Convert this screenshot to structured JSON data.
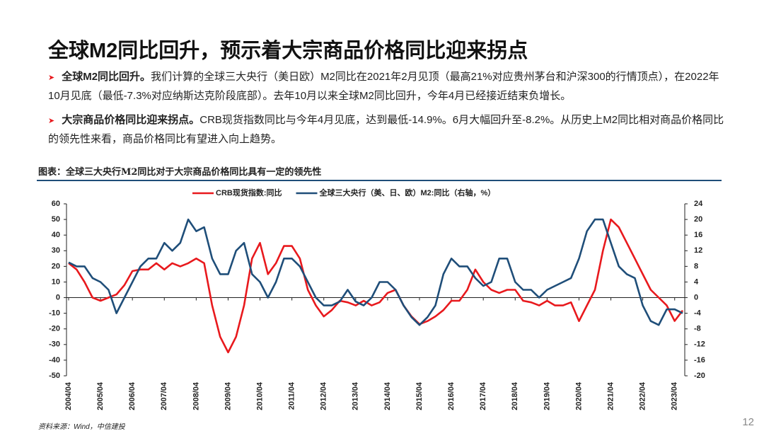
{
  "header": {
    "title": "全球M2同比回升，预示着大宗商品价格同比迎来拐点"
  },
  "bullets": [
    {
      "lead": "全球M2同比回升。",
      "text": "我们计算的全球三大央行（美日欧）M2同比在2021年2月见顶（最高21%对应贵州茅台和沪深300的行情顶点），在2022年10月见底（最低-7.3%对应纳斯达克阶段底部）。去年10月以来全球M2同比回升，今年4月已经接近结束负增长。"
    },
    {
      "lead": "大宗商品价格同比迎来拐点。",
      "text": "CRB现货指数同比与今年4月见底，达到最低-14.9%。6月大幅回升至-8.2%。从历史上M2同比相对商品价格同比的领先性来看，商品价格同比有望进入向上趋势。"
    }
  ],
  "chart_data": {
    "type": "line",
    "title": "图表：全球三大央行M2同比对于大宗商品价格同比具有一定的领先性",
    "categories": [
      "2004/04",
      null,
      null,
      null,
      "2005/04",
      null,
      null,
      null,
      "2006/04",
      null,
      null,
      null,
      "2007/04",
      null,
      null,
      null,
      "2008/04",
      null,
      null,
      null,
      "2009/04",
      null,
      null,
      null,
      "2010/04",
      null,
      null,
      null,
      "2011/04",
      null,
      null,
      null,
      "2012/04",
      null,
      null,
      null,
      "2013/04",
      null,
      null,
      null,
      "2014/04",
      null,
      null,
      null,
      "2015/04",
      null,
      null,
      null,
      "2016/04",
      null,
      null,
      null,
      "2017/04",
      null,
      null,
      null,
      "2018/04",
      null,
      null,
      null,
      "2019/04",
      null,
      null,
      null,
      "2020/04",
      null,
      null,
      null,
      "2021/04",
      null,
      null,
      null,
      "2022/04",
      null,
      null,
      null,
      "2023/04",
      null
    ],
    "series": [
      {
        "name": "CRB现货指数:同比",
        "color": "#e8191d",
        "values": [
          22,
          18,
          10,
          0,
          -2,
          0,
          2,
          8,
          17,
          18,
          18,
          22,
          18,
          22,
          20,
          22,
          25,
          22,
          -5,
          -25,
          -35,
          -25,
          -5,
          25,
          35,
          15,
          22,
          33,
          33,
          25,
          5,
          -5,
          -12,
          -8,
          -2,
          -3,
          -5,
          -2,
          -5,
          -3,
          3,
          5,
          -5,
          -12,
          -17,
          -15,
          -12,
          -8,
          -2,
          -2,
          5,
          18,
          10,
          5,
          3,
          5,
          5,
          -2,
          -3,
          -5,
          -2,
          -5,
          -5,
          -3,
          -15,
          -5,
          5,
          30,
          50,
          45,
          35,
          25,
          15,
          5,
          0,
          -5,
          -14.9,
          -8.2
        ]
      },
      {
        "name": "全球三大央行（美、日、欧）M2:同比（右轴，%）",
        "color": "#1f4e79",
        "axis": "y2",
        "values": [
          9,
          8,
          8,
          5,
          4,
          2,
          -4,
          0,
          4,
          8,
          10,
          10,
          14,
          12,
          14,
          20,
          17,
          18,
          10,
          6,
          6,
          12,
          14,
          6,
          4,
          0,
          4,
          10,
          10,
          8,
          4,
          0,
          -2,
          -2,
          -1,
          2,
          -1,
          -2,
          0,
          4,
          4,
          2,
          -2,
          -5,
          -7,
          -5,
          -2,
          6,
          10,
          8,
          8,
          5,
          3,
          4,
          10,
          10,
          4,
          2,
          2,
          0,
          2,
          3,
          4,
          5,
          10,
          17,
          20,
          20,
          14,
          8,
          6,
          5,
          -2,
          -6,
          -7,
          -3,
          -3,
          -4
        ]
      }
    ],
    "ylim": [
      -50,
      60
    ],
    "yticks": [
      60,
      50,
      40,
      30,
      20,
      10,
      0,
      -10,
      -20,
      -30,
      -40,
      -50
    ],
    "y2lim": [
      -20,
      24
    ],
    "y2ticks": [
      24,
      20,
      16,
      12,
      8,
      4,
      0,
      -4,
      -8,
      -12,
      -16,
      -20
    ],
    "legend": "top"
  },
  "source": "资料来源：Wind，中信建投",
  "page_number": "12"
}
